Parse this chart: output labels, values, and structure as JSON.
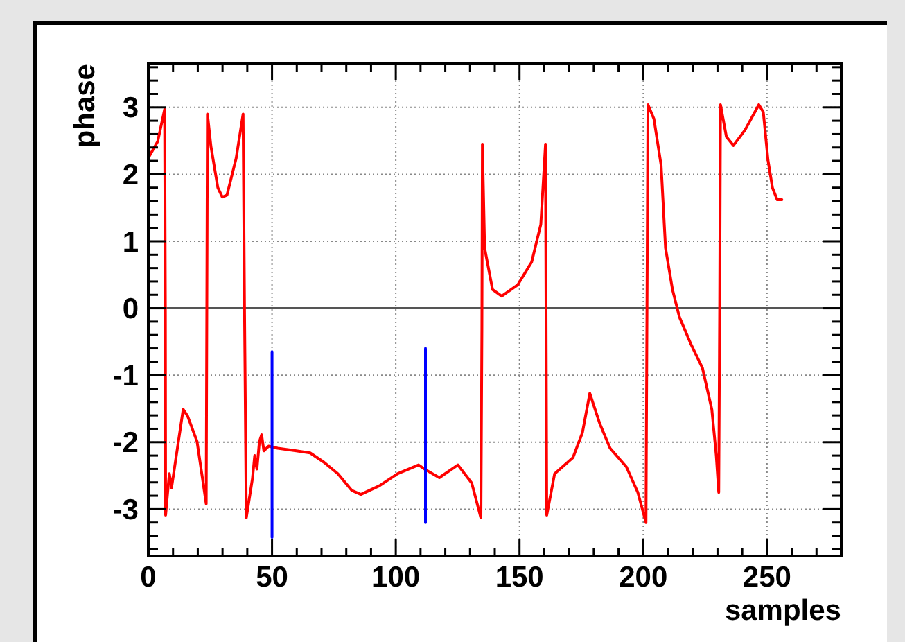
{
  "chart_data": {
    "type": "line",
    "xlabel": "samples",
    "ylabel": "phase",
    "xlim": [
      0,
      280
    ],
    "ylim": [
      -3.7,
      3.65
    ],
    "xticks": [
      0,
      {
        "value": 10,
        "label": null
      },
      {
        "value": 20,
        "label": null
      },
      {
        "value": 30,
        "label": null
      },
      {
        "value": 40,
        "label": null
      },
      50,
      {
        "value": 60,
        "label": null
      },
      {
        "value": 70,
        "label": null
      },
      {
        "value": 80,
        "label": null
      },
      {
        "value": 90,
        "label": null
      },
      100,
      {
        "value": 110,
        "label": null
      },
      {
        "value": 120,
        "label": null
      },
      {
        "value": 130,
        "label": null
      },
      {
        "value": 140,
        "label": null
      },
      150,
      {
        "value": 160,
        "label": null
      },
      {
        "value": 170,
        "label": null
      },
      {
        "value": 180,
        "label": null
      },
      {
        "value": 190,
        "label": null
      },
      200,
      {
        "value": 210,
        "label": null
      },
      {
        "value": 220,
        "label": null
      },
      {
        "value": 230,
        "label": null
      },
      {
        "value": 240,
        "label": null
      },
      250,
      {
        "value": 260,
        "label": null
      },
      {
        "value": 270,
        "label": null
      },
      {
        "value": 280,
        "label": null
      }
    ],
    "yticks": [
      {
        "value": -3.6,
        "label": null
      },
      {
        "value": -3.4,
        "label": null
      },
      {
        "value": -3.2,
        "label": null
      },
      -3,
      {
        "value": -2.8,
        "label": null
      },
      {
        "value": -2.6,
        "label": null
      },
      {
        "value": -2.4,
        "label": null
      },
      {
        "value": -2.2,
        "label": null
      },
      -2,
      {
        "value": -1.8,
        "label": null
      },
      {
        "value": -1.6,
        "label": null
      },
      {
        "value": -1.4,
        "label": null
      },
      {
        "value": -1.2,
        "label": null
      },
      -1,
      {
        "value": -0.8,
        "label": null
      },
      {
        "value": -0.6,
        "label": null
      },
      {
        "value": -0.4,
        "label": null
      },
      {
        "value": -0.2,
        "label": null
      },
      0,
      {
        "value": 0.2,
        "label": null
      },
      {
        "value": 0.4,
        "label": null
      },
      {
        "value": 0.6,
        "label": null
      },
      {
        "value": 0.8,
        "label": null
      },
      1,
      {
        "value": 1.2,
        "label": null
      },
      {
        "value": 1.4,
        "label": null
      },
      {
        "value": 1.6,
        "label": null
      },
      {
        "value": 1.8,
        "label": null
      },
      2,
      {
        "value": 2.2,
        "label": null
      },
      {
        "value": 2.4,
        "label": null
      },
      {
        "value": 2.6,
        "label": null
      },
      {
        "value": 2.8,
        "label": null
      },
      3,
      {
        "value": 3.2,
        "label": null
      },
      {
        "value": 3.4,
        "label": null
      },
      {
        "value": 3.6,
        "label": null
      }
    ],
    "grid": true,
    "ref_lines": [
      {
        "axis": "y",
        "value": 0,
        "color": "#555555"
      }
    ],
    "series": [
      {
        "color": "#ff0000",
        "x": [
          0.1,
          3.8,
          6.6,
          6.9,
          7,
          8.5,
          9.4,
          14.1,
          15.9,
          19.7,
          23.4,
          23.9,
          25.3,
          28.1,
          29.9,
          31.8,
          35.5,
          38.3,
          38.9,
          39.6,
          42.1,
          43,
          43.9,
          44.9,
          45.8,
          46.7,
          48.6,
          52.3,
          59.8,
          65.4,
          71,
          76.6,
          82.2,
          85.9,
          93.4,
          100.8,
          109.2,
          112,
          117.6,
          125.1,
          130.7,
          134.4,
          134.8,
          135,
          135.9,
          139.1,
          142.8,
          149.3,
          154.9,
          158.6,
          160.5,
          161,
          164.2,
          171.6,
          175.4,
          178.4,
          182.4,
          186.6,
          193.2,
          197.8,
          201.1,
          201.5,
          201.9,
          204.3,
          207.2,
          209,
          211.8,
          214.6,
          219.3,
          223.9,
          227.7,
          229.5,
          230.5,
          230.9,
          231.2,
          233.6,
          236.4,
          241.1,
          246.7,
          248.5,
          250.4,
          252.2,
          254.1,
          256
        ],
        "values": [
          2.25,
          2.49,
          2.97,
          -0.1,
          -3.09,
          -2.47,
          -2.68,
          -1.51,
          -1.61,
          -1.99,
          -2.92,
          2.9,
          2.42,
          1.8,
          1.66,
          1.69,
          2.24,
          2.9,
          -0.1,
          -3.13,
          -2.54,
          -2.2,
          -2.4,
          -1.99,
          -1.89,
          -2.13,
          -2.06,
          -2.09,
          -2.13,
          -2.16,
          -2.3,
          -2.47,
          -2.72,
          -2.78,
          -2.65,
          -2.47,
          -2.34,
          -2.41,
          -2.53,
          -2.34,
          -2.61,
          -3.13,
          -0.33,
          2.45,
          0.9,
          0.28,
          0.18,
          0.35,
          0.69,
          1.25,
          2.45,
          -3.09,
          -2.47,
          -2.23,
          -1.86,
          -1.27,
          -1.72,
          -2.09,
          -2.37,
          -2.75,
          -3.2,
          -0.03,
          3.04,
          2.83,
          2.14,
          0.9,
          0.28,
          -0.13,
          -0.54,
          -0.89,
          -1.51,
          -2.2,
          -2.75,
          0.11,
          3.04,
          2.56,
          2.43,
          2.66,
          3.04,
          2.93,
          2.21,
          1.8,
          1.62,
          1.62
        ]
      },
      {
        "color": "#0000ff",
        "x": [
          50,
          50
        ],
        "values": [
          -0.65,
          -3.42
        ]
      },
      {
        "color": "#0000ff",
        "x": [
          112,
          112
        ],
        "values": [
          -0.6,
          -3.2
        ]
      }
    ]
  }
}
